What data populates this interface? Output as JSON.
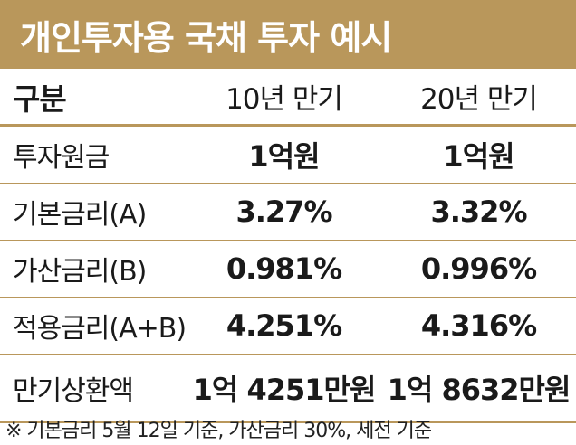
{
  "title": "개인투자용 국채 투자 예시",
  "header": {
    "label": "구분",
    "col1": "10년 만기",
    "col2": "20년 만기"
  },
  "rows": [
    {
      "label": "투자원금",
      "v1": "1억원",
      "v2": "1억원"
    },
    {
      "label": "기본금리(A)",
      "v1": "3.27%",
      "v2": "3.32%"
    },
    {
      "label": "가산금리(B)",
      "v1": "0.981%",
      "v2": "0.996%"
    },
    {
      "label": "적용금리(A+B)",
      "v1": "4.251%",
      "v2": "4.316%"
    },
    {
      "label": "만기상환액",
      "v1": "1억 4251만원",
      "v2": "1억 8632만원"
    }
  ],
  "note": "※ 기본금리 5월 12일 기준, 가산금리 30%, 세전 기준"
}
